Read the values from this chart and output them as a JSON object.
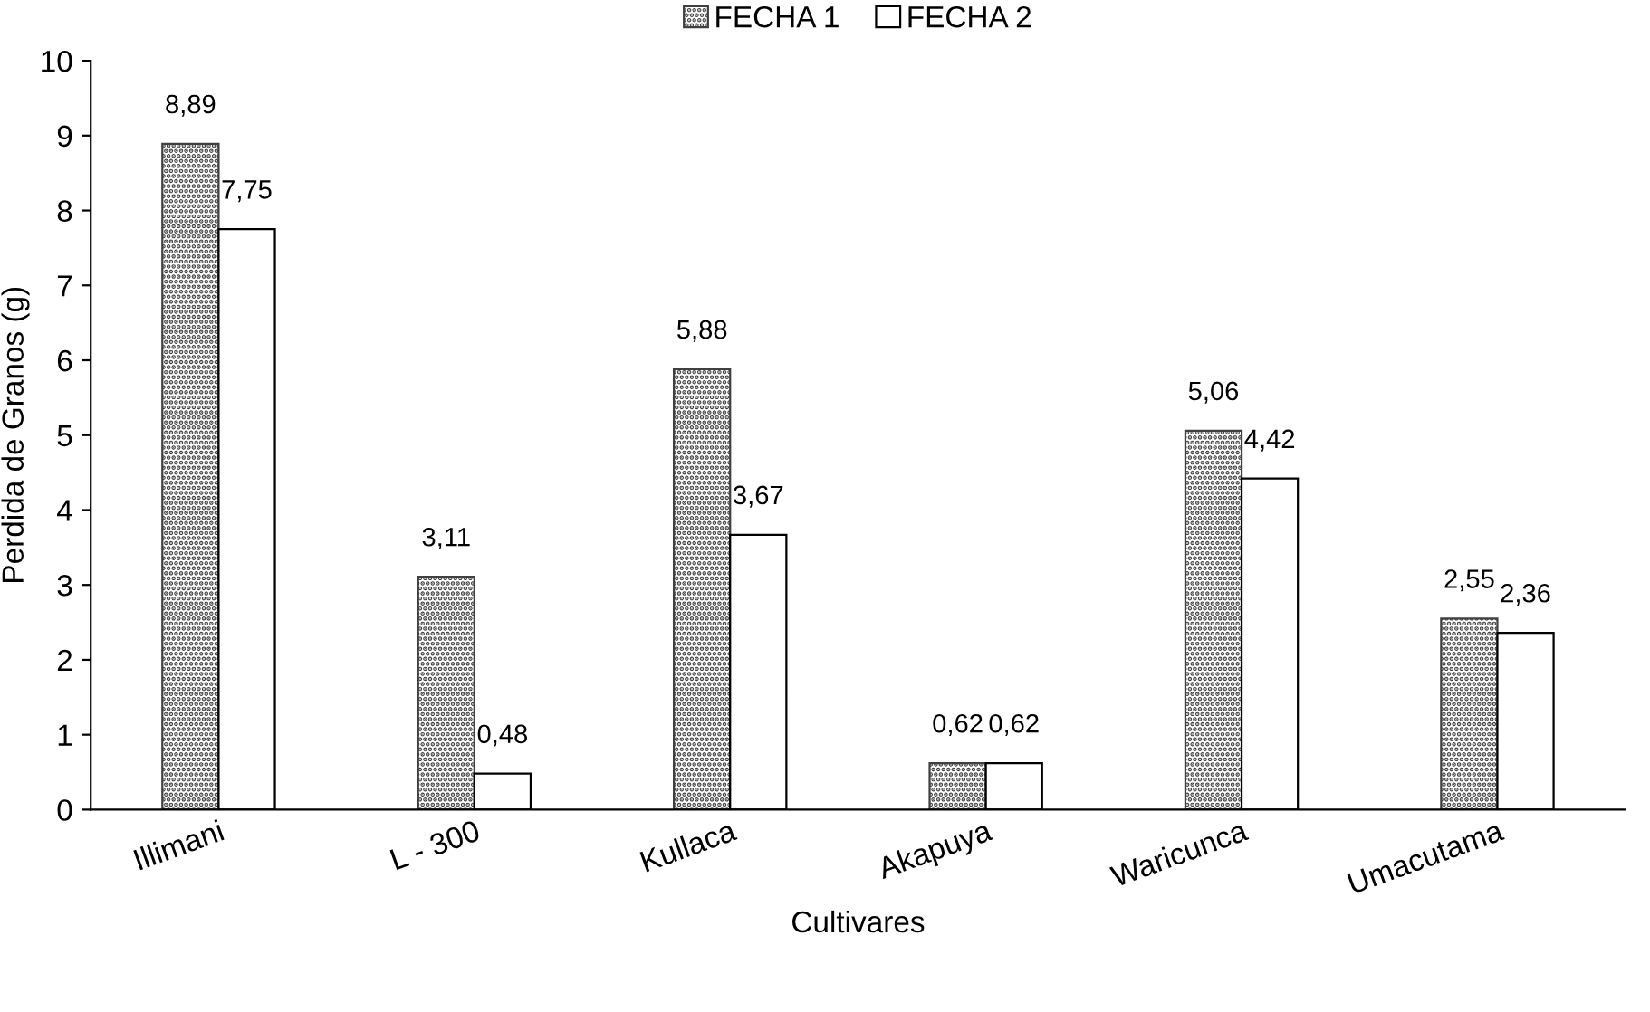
{
  "chart_data": {
    "type": "bar",
    "xlabel": "Cultivares",
    "ylabel": "Perdida de Granos (g)",
    "categories": [
      "Illimani",
      "L - 300",
      "Kullaca",
      "Akapuya",
      "Waricunca",
      "Umacutama"
    ],
    "series": [
      {
        "name": "FECHA 1",
        "color": "#404040",
        "values": [
          8.89,
          3.11,
          5.88,
          0.62,
          5.06,
          2.55
        ],
        "value_labels": [
          "8,89",
          "3,11",
          "5,88",
          "0,62",
          "5,06",
          "2,55"
        ]
      },
      {
        "name": "FECHA 2",
        "color": "#ffffff",
        "values": [
          7.75,
          0.48,
          3.67,
          0.62,
          4.42,
          2.36
        ],
        "value_labels": [
          "7,75",
          "0,48",
          "3,67",
          "0,62",
          "4,42",
          "2,36"
        ]
      }
    ],
    "ylim": [
      0,
      10
    ],
    "yticks": [
      0,
      1,
      2,
      3,
      4,
      5,
      6,
      7,
      8,
      9,
      10
    ],
    "grid": false,
    "legend": "top"
  }
}
